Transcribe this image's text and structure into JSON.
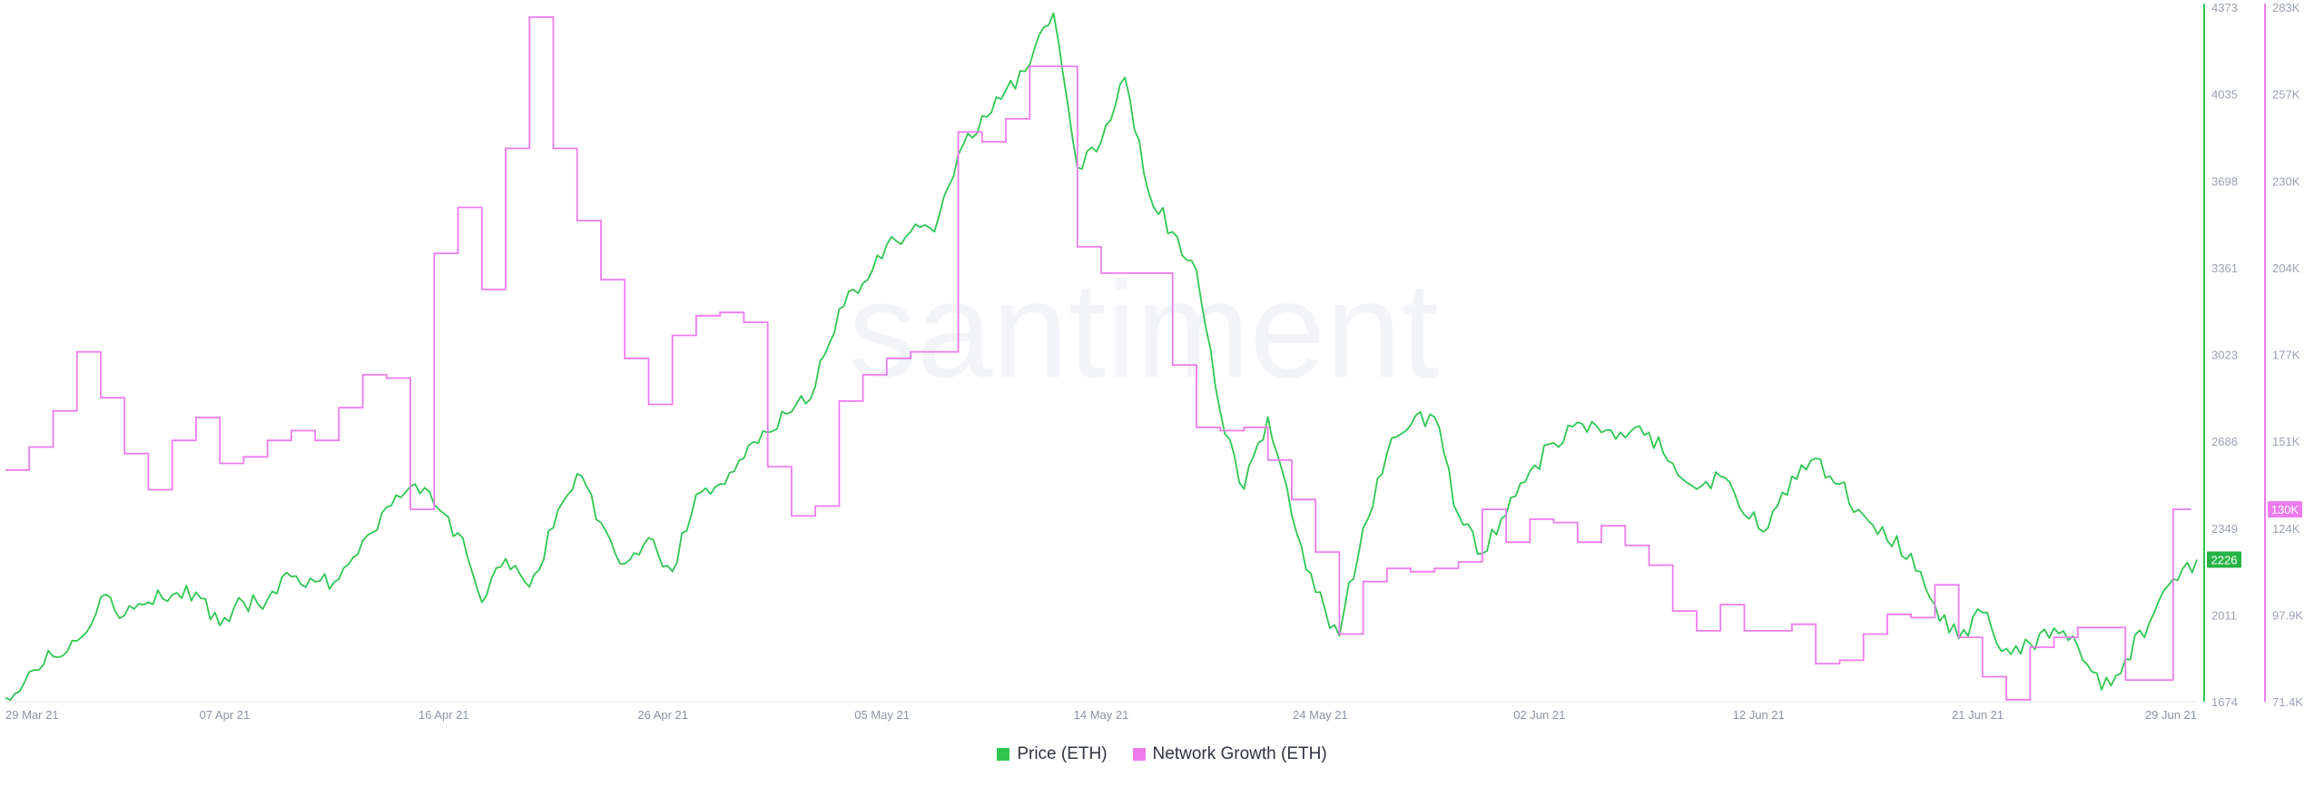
{
  "chart_data": {
    "type": "line",
    "watermark": "santiment",
    "x_ticks": [
      "29 Mar 21",
      "07 Apr 21",
      "16 Apr 21",
      "26 Apr 21",
      "05 May 21",
      "14 May 21",
      "24 May 21",
      "02 Jun 21",
      "12 Jun 21",
      "21 Jun 21",
      "29 Jun 21"
    ],
    "x_range": [
      "2021-03-29",
      "2021-06-29"
    ],
    "y_left": {
      "label": "",
      "range": [
        1674,
        4373
      ],
      "ticks": [
        "4373",
        "4035",
        "3698",
        "3361",
        "3023",
        "2686",
        "2349",
        "2011",
        "1674"
      ]
    },
    "y_right": {
      "label": "",
      "range": [
        71400,
        283000
      ],
      "ticks": [
        "283K",
        "257K",
        "230K",
        "204K",
        "177K",
        "151K",
        "124K",
        "97.9K",
        "71.4K"
      ]
    },
    "last_value_labels": {
      "price": "2226",
      "network_growth": "130K"
    },
    "colors": {
      "price": "#2fc752",
      "network_growth": "#ee7bee",
      "price_badge": "#26b346",
      "growth_badge": "#ee7bee",
      "axis_price": "#2fc752",
      "axis_growth": "#ee7bee"
    },
    "legend_position": "bottom-center",
    "series": [
      {
        "name": "Price (ETH)",
        "axis": "left",
        "points": [
          [
            "2021-03-29",
            1690
          ],
          [
            "2021-03-30",
            1790
          ],
          [
            "2021-03-31",
            1850
          ],
          [
            "2021-04-01",
            1910
          ],
          [
            "2021-04-02",
            2080
          ],
          [
            "2021-04-03",
            2010
          ],
          [
            "2021-04-04",
            2060
          ],
          [
            "2021-04-05",
            2090
          ],
          [
            "2021-04-06",
            2100
          ],
          [
            "2021-04-07",
            1970
          ],
          [
            "2021-04-08",
            2060
          ],
          [
            "2021-04-09",
            2070
          ],
          [
            "2021-04-10",
            2160
          ],
          [
            "2021-04-11",
            2140
          ],
          [
            "2021-04-12",
            2150
          ],
          [
            "2021-04-13",
            2300
          ],
          [
            "2021-04-14",
            2430
          ],
          [
            "2021-04-15",
            2510
          ],
          [
            "2021-04-16",
            2440
          ],
          [
            "2021-04-17",
            2330
          ],
          [
            "2021-04-18",
            2060
          ],
          [
            "2021-04-19",
            2230
          ],
          [
            "2021-04-20",
            2120
          ],
          [
            "2021-04-21",
            2350
          ],
          [
            "2021-04-22",
            2560
          ],
          [
            "2021-04-23",
            2370
          ],
          [
            "2021-04-24",
            2210
          ],
          [
            "2021-04-25",
            2310
          ],
          [
            "2021-04-26",
            2180
          ],
          [
            "2021-04-27",
            2480
          ],
          [
            "2021-04-28",
            2520
          ],
          [
            "2021-04-29",
            2620
          ],
          [
            "2021-04-30",
            2720
          ],
          [
            "2021-05-01",
            2800
          ],
          [
            "2021-05-02",
            2900
          ],
          [
            "2021-05-03",
            3200
          ],
          [
            "2021-05-04",
            3300
          ],
          [
            "2021-05-05",
            3450
          ],
          [
            "2021-05-06",
            3500
          ],
          [
            "2021-05-07",
            3500
          ],
          [
            "2021-05-08",
            3800
          ],
          [
            "2021-05-09",
            3950
          ],
          [
            "2021-05-10",
            4050
          ],
          [
            "2021-05-11",
            4150
          ],
          [
            "2021-05-12",
            4350
          ],
          [
            "2021-05-13",
            3750
          ],
          [
            "2021-05-14",
            3850
          ],
          [
            "2021-05-15",
            4100
          ],
          [
            "2021-05-16",
            3650
          ],
          [
            "2021-05-17",
            3500
          ],
          [
            "2021-05-18",
            3350
          ],
          [
            "2021-05-19",
            2800
          ],
          [
            "2021-05-20",
            2500
          ],
          [
            "2021-05-21",
            2780
          ],
          [
            "2021-05-22",
            2400
          ],
          [
            "2021-05-23",
            2100
          ],
          [
            "2021-05-24",
            1930
          ],
          [
            "2021-05-25",
            2350
          ],
          [
            "2021-05-26",
            2640
          ],
          [
            "2021-05-27",
            2750
          ],
          [
            "2021-05-28",
            2780
          ],
          [
            "2021-05-29",
            2400
          ],
          [
            "2021-05-30",
            2250
          ],
          [
            "2021-05-31",
            2400
          ],
          [
            "2021-06-01",
            2570
          ],
          [
            "2021-06-02",
            2680
          ],
          [
            "2021-06-03",
            2760
          ],
          [
            "2021-06-04",
            2720
          ],
          [
            "2021-06-05",
            2700
          ],
          [
            "2021-06-06",
            2720
          ],
          [
            "2021-06-07",
            2600
          ],
          [
            "2021-06-08",
            2500
          ],
          [
            "2021-06-09",
            2550
          ],
          [
            "2021-06-10",
            2400
          ],
          [
            "2021-06-11",
            2350
          ],
          [
            "2021-06-12",
            2550
          ],
          [
            "2021-06-13",
            2620
          ],
          [
            "2021-06-14",
            2520
          ],
          [
            "2021-06-15",
            2400
          ],
          [
            "2021-06-16",
            2300
          ],
          [
            "2021-06-17",
            2250
          ],
          [
            "2021-06-18",
            2050
          ],
          [
            "2021-06-19",
            1920
          ],
          [
            "2021-06-20",
            2020
          ],
          [
            "2021-06-21",
            1880
          ],
          [
            "2021-06-22",
            1900
          ],
          [
            "2021-06-23",
            1960
          ],
          [
            "2021-06-24",
            1890
          ],
          [
            "2021-06-25",
            1720
          ],
          [
            "2021-06-26",
            1840
          ],
          [
            "2021-06-27",
            1980
          ],
          [
            "2021-06-28",
            2150
          ],
          [
            "2021-06-29",
            2226
          ]
        ]
      },
      {
        "name": "Network Growth (ETH)",
        "axis": "right",
        "points": [
          [
            "2021-03-29",
            142000
          ],
          [
            "2021-03-30",
            149000
          ],
          [
            "2021-03-31",
            160000
          ],
          [
            "2021-04-01",
            178000
          ],
          [
            "2021-04-02",
            164000
          ],
          [
            "2021-04-03",
            147000
          ],
          [
            "2021-04-04",
            136000
          ],
          [
            "2021-04-05",
            151000
          ],
          [
            "2021-04-06",
            158000
          ],
          [
            "2021-04-07",
            144000
          ],
          [
            "2021-04-08",
            146000
          ],
          [
            "2021-04-09",
            151000
          ],
          [
            "2021-04-10",
            154000
          ],
          [
            "2021-04-11",
            151000
          ],
          [
            "2021-04-12",
            161000
          ],
          [
            "2021-04-13",
            171000
          ],
          [
            "2021-04-14",
            170000
          ],
          [
            "2021-04-15",
            130000
          ],
          [
            "2021-04-16",
            208000
          ],
          [
            "2021-04-17",
            222000
          ],
          [
            "2021-04-18",
            197000
          ],
          [
            "2021-04-19",
            240000
          ],
          [
            "2021-04-20",
            280000
          ],
          [
            "2021-04-21",
            240000
          ],
          [
            "2021-04-22",
            218000
          ],
          [
            "2021-04-23",
            200000
          ],
          [
            "2021-04-24",
            176000
          ],
          [
            "2021-04-25",
            162000
          ],
          [
            "2021-04-26",
            183000
          ],
          [
            "2021-04-27",
            189000
          ],
          [
            "2021-04-28",
            190000
          ],
          [
            "2021-04-29",
            187000
          ],
          [
            "2021-04-30",
            143000
          ],
          [
            "2021-05-01",
            128000
          ],
          [
            "2021-05-02",
            131000
          ],
          [
            "2021-05-03",
            163000
          ],
          [
            "2021-05-04",
            171000
          ],
          [
            "2021-05-05",
            176000
          ],
          [
            "2021-05-06",
            178000
          ],
          [
            "2021-05-07",
            178000
          ],
          [
            "2021-05-08",
            245000
          ],
          [
            "2021-05-09",
            242000
          ],
          [
            "2021-05-10",
            249000
          ],
          [
            "2021-05-11",
            265000
          ],
          [
            "2021-05-12",
            265000
          ],
          [
            "2021-05-13",
            210000
          ],
          [
            "2021-05-14",
            202000
          ],
          [
            "2021-05-15",
            202000
          ],
          [
            "2021-05-16",
            202000
          ],
          [
            "2021-05-17",
            174000
          ],
          [
            "2021-05-18",
            155000
          ],
          [
            "2021-05-19",
            154000
          ],
          [
            "2021-05-20",
            155000
          ],
          [
            "2021-05-21",
            145000
          ],
          [
            "2021-05-22",
            133000
          ],
          [
            "2021-05-23",
            117000
          ],
          [
            "2021-05-24",
            92000
          ],
          [
            "2021-05-25",
            108000
          ],
          [
            "2021-05-26",
            112000
          ],
          [
            "2021-05-27",
            111000
          ],
          [
            "2021-05-28",
            112000
          ],
          [
            "2021-05-29",
            114000
          ],
          [
            "2021-05-30",
            130000
          ],
          [
            "2021-05-31",
            120000
          ],
          [
            "2021-06-01",
            127000
          ],
          [
            "2021-06-02",
            126000
          ],
          [
            "2021-06-03",
            120000
          ],
          [
            "2021-06-04",
            125000
          ],
          [
            "2021-06-05",
            119000
          ],
          [
            "2021-06-06",
            113000
          ],
          [
            "2021-06-07",
            99000
          ],
          [
            "2021-06-08",
            93000
          ],
          [
            "2021-06-09",
            101000
          ],
          [
            "2021-06-10",
            93000
          ],
          [
            "2021-06-11",
            93000
          ],
          [
            "2021-06-12",
            95000
          ],
          [
            "2021-06-13",
            83000
          ],
          [
            "2021-06-14",
            84000
          ],
          [
            "2021-06-15",
            92000
          ],
          [
            "2021-06-16",
            98000
          ],
          [
            "2021-06-17",
            97000
          ],
          [
            "2021-06-18",
            107000
          ],
          [
            "2021-06-19",
            91000
          ],
          [
            "2021-06-20",
            79000
          ],
          [
            "2021-06-21",
            72000
          ],
          [
            "2021-06-22",
            88000
          ],
          [
            "2021-06-23",
            91000
          ],
          [
            "2021-06-24",
            94000
          ],
          [
            "2021-06-25",
            94000
          ],
          [
            "2021-06-26",
            78000
          ],
          [
            "2021-06-27",
            78000
          ],
          [
            "2021-06-28",
            130000
          ]
        ]
      }
    ]
  }
}
